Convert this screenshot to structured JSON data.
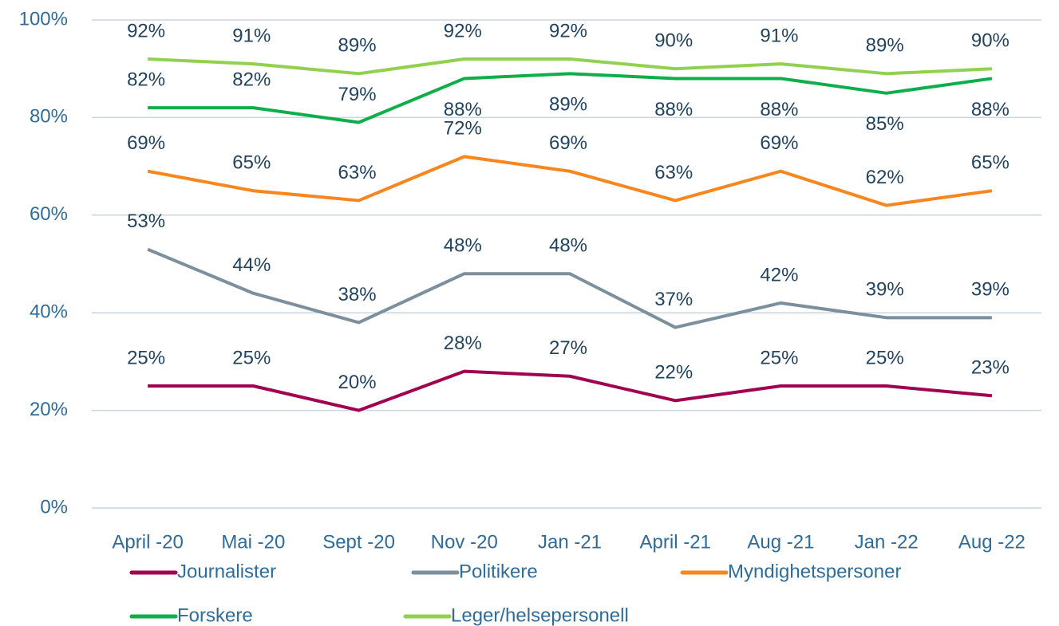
{
  "chart_data": {
    "type": "line",
    "categories": [
      "April -20",
      "Mai -20",
      "Sept -20",
      "Nov -20",
      "Jan -21",
      "April -21",
      "Aug -21",
      "Jan -22",
      "Aug -22"
    ],
    "series": [
      {
        "name": "Journalister",
        "color": "#a0004f",
        "values": [
          25,
          25,
          20,
          28,
          27,
          22,
          25,
          25,
          23
        ],
        "value_labels": [
          "25%",
          "25%",
          "20%",
          "28%",
          "27%",
          "22%",
          "25%",
          "25%",
          "23%"
        ]
      },
      {
        "name": "Politikere",
        "color": "#7b8f9c",
        "values": [
          53,
          44,
          38,
          48,
          48,
          37,
          42,
          39,
          39
        ],
        "value_labels": [
          "53%",
          "44%",
          "38%",
          "48%",
          "48%",
          "37%",
          "42%",
          "39%",
          "39%"
        ]
      },
      {
        "name": "Myndighetspersoner",
        "color": "#f7861f",
        "values": [
          69,
          65,
          63,
          72,
          69,
          63,
          69,
          62,
          65
        ],
        "value_labels": [
          "69%",
          "65%",
          "63%",
          "72%",
          "69%",
          "63%",
          "69%",
          "62%",
          "65%"
        ]
      },
      {
        "name": "Forskere",
        "color": "#10ad4b",
        "values": [
          82,
          82,
          79,
          88,
          89,
          88,
          88,
          85,
          88
        ],
        "value_labels": [
          "82%",
          "82%",
          "79%",
          "88%",
          "89%",
          "88%",
          "88%",
          "85%",
          "88%"
        ]
      },
      {
        "name": "Leger/helsepersonell",
        "color": "#92d050",
        "values": [
          92,
          91,
          89,
          92,
          92,
          90,
          91,
          89,
          90
        ],
        "value_labels": [
          "92%",
          "91%",
          "89%",
          "92%",
          "92%",
          "90%",
          "91%",
          "89%",
          "90%"
        ]
      }
    ],
    "ylim": [
      0,
      100
    ],
    "yticks": [
      {
        "value": 0,
        "label": "0%"
      },
      {
        "value": 20,
        "label": "20%"
      },
      {
        "value": 40,
        "label": "40%"
      },
      {
        "value": 60,
        "label": "60%"
      },
      {
        "value": 80,
        "label": "80%"
      },
      {
        "value": 100,
        "label": "100%"
      }
    ],
    "grid": true
  }
}
